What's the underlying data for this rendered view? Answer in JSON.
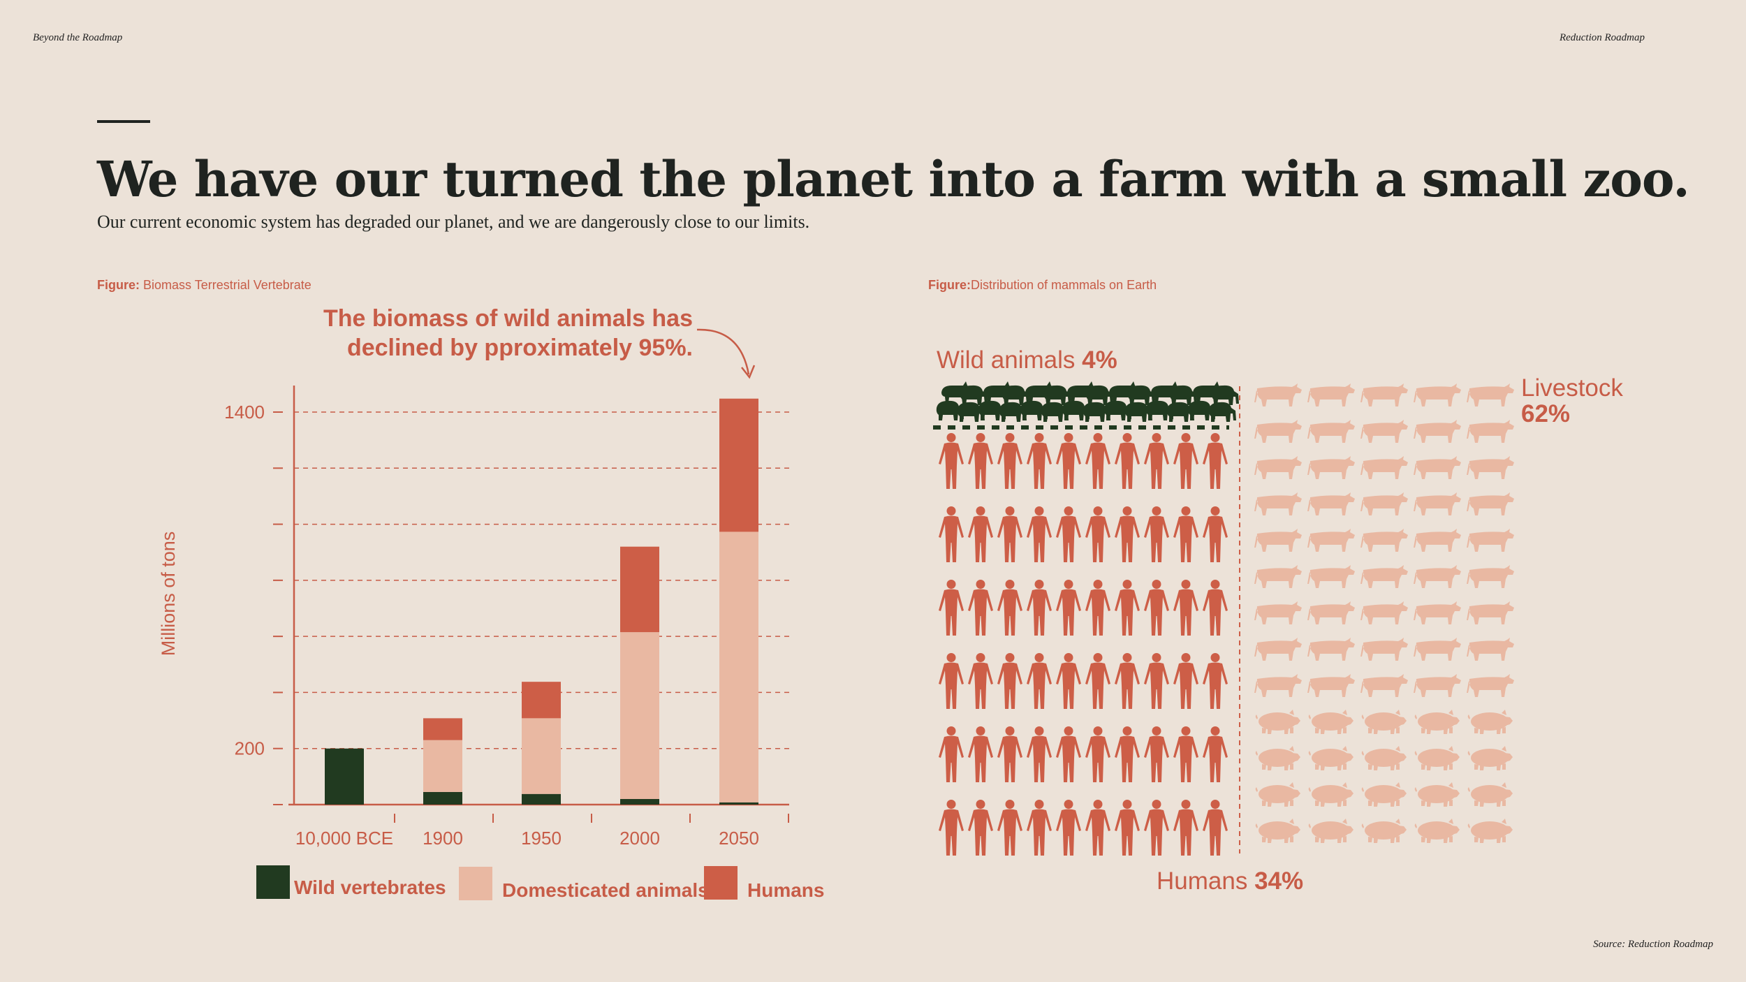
{
  "header": {
    "left": "Beyond the Roadmap",
    "right": "Reduction Roadmap"
  },
  "title": "We have our turned the planet into a farm with a small zoo.",
  "subtitle": "Our current economic system has degraded our planet, and we are dangerously close to our limits.",
  "figures": {
    "left": {
      "prefix": "Figure:",
      "label": " Biomass Terrestrial Vertebrate"
    },
    "right": {
      "prefix": "Figure:",
      "label": "Distribution of mammals on Earth"
    }
  },
  "source": "Source: Reduction Roadmap",
  "colors": {
    "background": "#ece2d8",
    "wild": "#213a20",
    "domesticated": "#e9b8a2",
    "humans": "#cd5e47",
    "text_accent": "#c75c47"
  },
  "chart_data": [
    {
      "type": "bar",
      "stacked": true,
      "annotation": [
        "The biomass of wild animals has",
        "declined by pproximately 95%."
      ],
      "ylabel": "Millions of tons",
      "xlabel": "",
      "ylim": [
        0,
        1400
      ],
      "yticks_labeled": [
        "1400",
        "200"
      ],
      "yticks": [
        0,
        200,
        400,
        600,
        800,
        1000,
        1200,
        1400
      ],
      "grid": "dashed horizontal",
      "categories": [
        "10,000 BCE",
        "1900",
        "1950",
        "2000",
        "2050"
      ],
      "series": [
        {
          "name": "Wild vertebrates",
          "color": "#213a20",
          "values": [
            200,
            45,
            38,
            20,
            8
          ]
        },
        {
          "name": "Domesticated animals",
          "color": "#e9b8a2",
          "values": [
            0,
            185,
            270,
            595,
            965
          ]
        },
        {
          "name": "Humans",
          "color": "#cd5e47",
          "values": [
            0,
            78,
            130,
            305,
            475
          ]
        }
      ],
      "legend_position": "bottom"
    },
    {
      "type": "pictogram",
      "groups": [
        {
          "label": "Wild animals",
          "percent": "4%",
          "icon": "wild-animal-icon",
          "color": "#213a20"
        },
        {
          "label": "Livestock",
          "percent": "62%",
          "icon": "cow-pig-icon",
          "color": "#e9b8a2"
        },
        {
          "label": "Humans",
          "percent": "34%",
          "icon": "human-icon",
          "color": "#cd5e47"
        }
      ]
    }
  ]
}
